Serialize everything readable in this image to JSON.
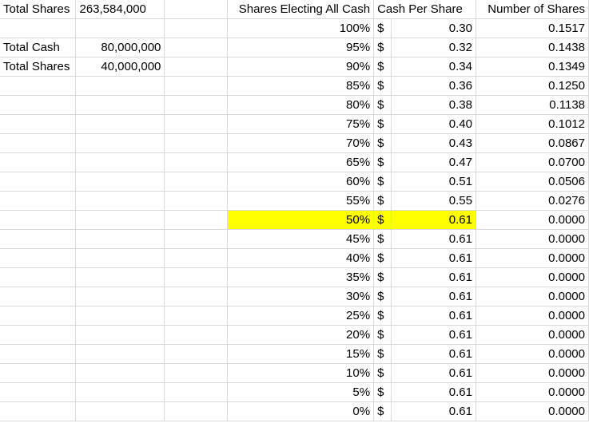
{
  "headers": {
    "shares_electing": "Shares Electing All Cash",
    "cash_per_share": "Cash Per Share",
    "number_of_shares": "Number of Shares"
  },
  "inputs": {
    "total_shares_label": "Total Shares",
    "total_shares_value": "263,584,000",
    "total_cash_label": "Total Cash",
    "total_cash_value": "80,000,000",
    "total_shares2_label": "Total Shares",
    "total_shares2_value": "40,000,000"
  },
  "currency_symbol": "$",
  "highlight_color": "#ffff00",
  "highlight_row_pct": "50%",
  "rows": [
    {
      "pct": "100%",
      "cash": "0.30",
      "shares": "0.1517"
    },
    {
      "pct": "95%",
      "cash": "0.32",
      "shares": "0.1438"
    },
    {
      "pct": "90%",
      "cash": "0.34",
      "shares": "0.1349"
    },
    {
      "pct": "85%",
      "cash": "0.36",
      "shares": "0.1250"
    },
    {
      "pct": "80%",
      "cash": "0.38",
      "shares": "0.1138"
    },
    {
      "pct": "75%",
      "cash": "0.40",
      "shares": "0.1012"
    },
    {
      "pct": "70%",
      "cash": "0.43",
      "shares": "0.0867"
    },
    {
      "pct": "65%",
      "cash": "0.47",
      "shares": "0.0700"
    },
    {
      "pct": "60%",
      "cash": "0.51",
      "shares": "0.0506"
    },
    {
      "pct": "55%",
      "cash": "0.55",
      "shares": "0.0276"
    },
    {
      "pct": "50%",
      "cash": "0.61",
      "shares": "0.0000"
    },
    {
      "pct": "45%",
      "cash": "0.61",
      "shares": "0.0000"
    },
    {
      "pct": "40%",
      "cash": "0.61",
      "shares": "0.0000"
    },
    {
      "pct": "35%",
      "cash": "0.61",
      "shares": "0.0000"
    },
    {
      "pct": "30%",
      "cash": "0.61",
      "shares": "0.0000"
    },
    {
      "pct": "25%",
      "cash": "0.61",
      "shares": "0.0000"
    },
    {
      "pct": "20%",
      "cash": "0.61",
      "shares": "0.0000"
    },
    {
      "pct": "15%",
      "cash": "0.61",
      "shares": "0.0000"
    },
    {
      "pct": "10%",
      "cash": "0.61",
      "shares": "0.0000"
    },
    {
      "pct": "5%",
      "cash": "0.61",
      "shares": "0.0000"
    },
    {
      "pct": "0%",
      "cash": "0.61",
      "shares": "0.0000"
    }
  ]
}
